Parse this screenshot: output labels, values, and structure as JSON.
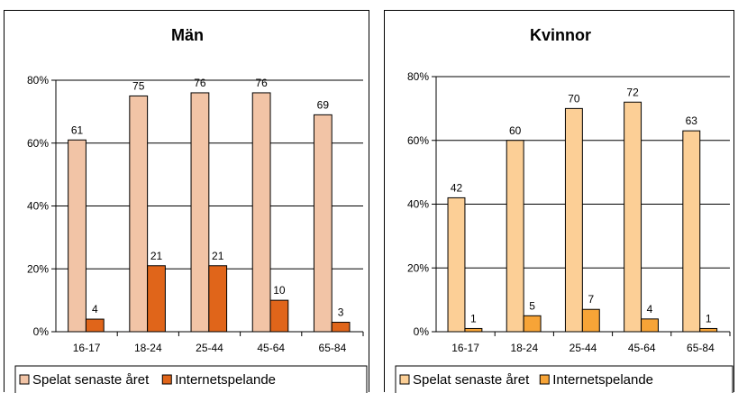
{
  "chart_data": [
    {
      "type": "bar",
      "title": "Män",
      "categories": [
        "16-17",
        "18-24",
        "25-44",
        "45-64",
        "65-84"
      ],
      "y_ticks": [
        "0%",
        "20%",
        "40%",
        "60%",
        "80%"
      ],
      "ylim": [
        0,
        80
      ],
      "grid": true,
      "legend_position": "bottom",
      "series": [
        {
          "name": "Spelat senaste året",
          "values": [
            61,
            75,
            76,
            76,
            69
          ],
          "color": "#f2c4a6"
        },
        {
          "name": "Internetspelande",
          "values": [
            4,
            21,
            21,
            10,
            3
          ],
          "color": "#e0651a"
        }
      ]
    },
    {
      "type": "bar",
      "title": "Kvinnor",
      "categories": [
        "16-17",
        "18-24",
        "25-44",
        "45-64",
        "65-84"
      ],
      "y_ticks": [
        "0%",
        "20%",
        "40%",
        "60%",
        "80%"
      ],
      "ylim": [
        0,
        80
      ],
      "grid": true,
      "legend_position": "bottom",
      "series": [
        {
          "name": "Spelat senaste året",
          "values": [
            42,
            60,
            70,
            72,
            63
          ],
          "color": "#fccf96"
        },
        {
          "name": "Internetspelande",
          "values": [
            1,
            5,
            7,
            4,
            1
          ],
          "color": "#f7a437"
        }
      ]
    }
  ]
}
